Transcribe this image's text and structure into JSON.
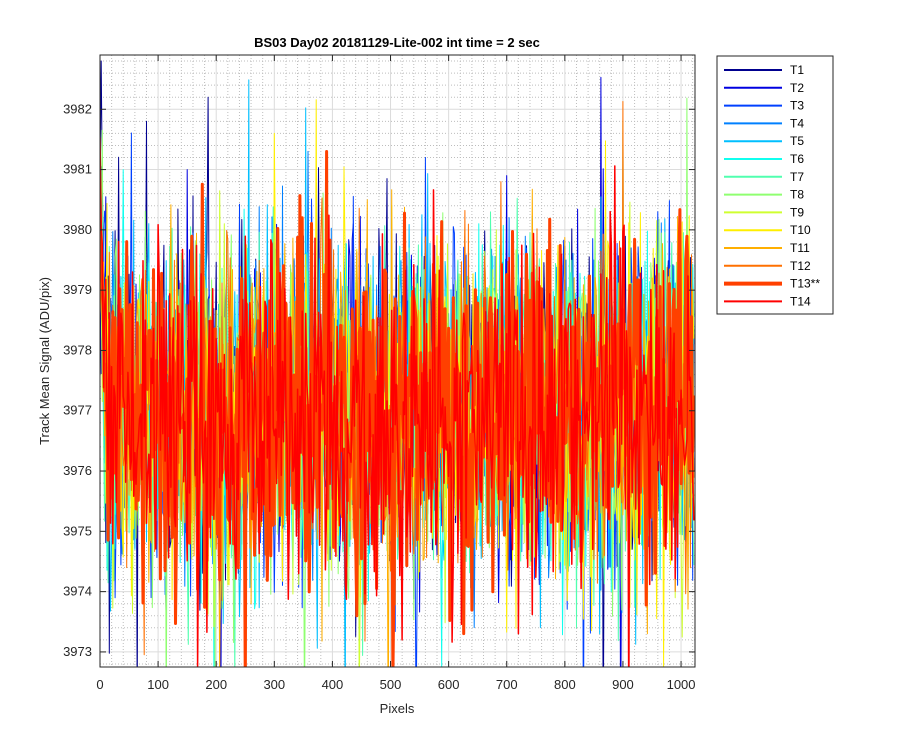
{
  "chart_data": {
    "type": "line",
    "title": "BS03 Day02 20181129-Lite-002 int time = 2 sec",
    "xlabel": "Pixels",
    "ylabel": "Track Mean Signal (ADU/pix)",
    "xlim": [
      0,
      1024
    ],
    "ylim": [
      3972.75,
      3982.9
    ],
    "xticks": [
      0,
      100,
      200,
      300,
      400,
      500,
      600,
      700,
      800,
      900,
      1000
    ],
    "yticks": [
      3973,
      3974,
      3975,
      3976,
      3977,
      3978,
      3979,
      3980,
      3981,
      3982
    ],
    "grid": true,
    "minor_grid": true,
    "legend_position": "outside-top-right",
    "series": [
      {
        "name": "T1",
        "color": "#00008f",
        "width": 1,
        "seed": 11,
        "peaks": [
          [
            80,
            3981.8
          ],
          [
            2,
            3982.8
          ],
          [
            350,
            3979.9
          ]
        ]
      },
      {
        "name": "T2",
        "color": "#0000e0",
        "width": 1,
        "seed": 23,
        "peaks": [
          [
            150,
            3981.0
          ],
          [
            700,
            3980.9
          ]
        ]
      },
      {
        "name": "T3",
        "color": "#0040ff",
        "width": 1,
        "seed": 37,
        "peaks": [
          [
            560,
            3981.2
          ],
          [
            960,
            3980.3
          ]
        ]
      },
      {
        "name": "T4",
        "color": "#0080ff",
        "width": 1,
        "seed": 41,
        "peaks": [
          [
            575,
            3982.6
          ],
          [
            915,
            3973.8
          ]
        ]
      },
      {
        "name": "T5",
        "color": "#00bfff",
        "width": 1,
        "seed": 53,
        "peaks": [
          [
            860,
            3973.3
          ],
          [
            60,
            3974.7
          ]
        ]
      },
      {
        "name": "T6",
        "color": "#10ffef",
        "width": 1,
        "seed": 67,
        "peaks": [
          [
            40,
            3981.0
          ],
          [
            880,
            3974.0
          ]
        ]
      },
      {
        "name": "T7",
        "color": "#50ffaf",
        "width": 1,
        "seed": 71,
        "peaks": [
          [
            820,
            3973.4
          ],
          [
            300,
            3980.2
          ]
        ]
      },
      {
        "name": "T8",
        "color": "#8fff70",
        "width": 1,
        "seed": 83,
        "peaks": [
          [
            900,
            3981.8
          ],
          [
            805,
            3973.3
          ]
        ]
      },
      {
        "name": "T9",
        "color": "#cfff30",
        "width": 1,
        "seed": 97,
        "peaks": [
          [
            5,
            3982.5
          ],
          [
            990,
            3973.9
          ]
        ]
      },
      {
        "name": "T10",
        "color": "#ffef00",
        "width": 1,
        "seed": 101,
        "peaks": [
          [
            275,
            3981.0
          ],
          [
            300,
            3981.6
          ]
        ]
      },
      {
        "name": "T11",
        "color": "#ffaf00",
        "width": 1,
        "seed": 113,
        "peaks": [
          [
            942,
            3973.3
          ],
          [
            260,
            3973.8
          ],
          [
            460,
            3980.5
          ]
        ]
      },
      {
        "name": "T12",
        "color": "#ff7000",
        "width": 1,
        "seed": 127,
        "peaks": [
          [
            75,
            3973.6
          ],
          [
            690,
            3980.8
          ]
        ]
      },
      {
        "name": "T13**",
        "color": "#ff4000",
        "width": 3,
        "seed": 131,
        "peaks": [
          [
            390,
            3981.3
          ],
          [
            335,
            3973.4
          ],
          [
            442,
            3973.6
          ]
        ]
      },
      {
        "name": "T14",
        "color": "#ff0000",
        "width": 1.5,
        "seed": 139,
        "peaks": [
          [
            168,
            3972.75
          ],
          [
            720,
            3973.3
          ],
          [
            520,
            3973.2
          ]
        ]
      }
    ]
  }
}
